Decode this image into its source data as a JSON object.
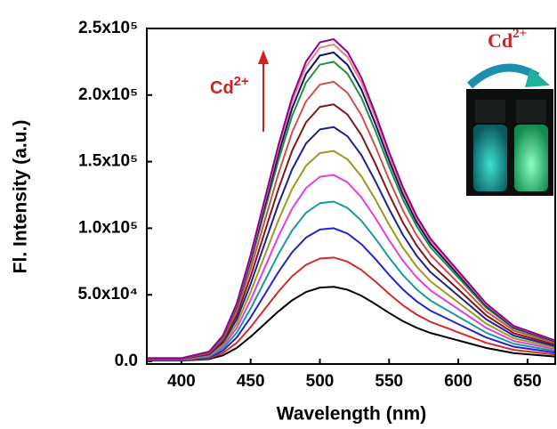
{
  "chart_data": {
    "type": "line",
    "x_label": "Wavelength (nm)",
    "y_label": "Fl. Intensity (a.u.)",
    "x": [
      375,
      400,
      420,
      430,
      440,
      450,
      460,
      470,
      480,
      490,
      500,
      510,
      520,
      530,
      540,
      550,
      560,
      570,
      580,
      600,
      620,
      640,
      670
    ],
    "xlim": [
      375,
      670
    ],
    "xticks": [
      400,
      450,
      500,
      550,
      600,
      650
    ],
    "ylim": [
      -2000,
      250000
    ],
    "yticks": [
      {
        "value": 0,
        "label": "0.0"
      },
      {
        "value": 50000,
        "label": "5.0x10⁴"
      },
      {
        "value": 100000,
        "label": "1.0x10⁵"
      },
      {
        "value": 150000,
        "label": "1.5x10⁵"
      },
      {
        "value": 200000,
        "label": "2.0x10⁵"
      },
      {
        "value": 250000,
        "label": "2.5x10⁵"
      }
    ],
    "grid": false,
    "annotations": [
      {
        "text": "Cd",
        "sup": "2+"
      },
      {
        "text": "Cd",
        "sup": "2+"
      }
    ],
    "series": [
      {
        "color": "#000000",
        "values": [
          600,
          600,
          1700,
          4500,
          10100,
          18500,
          28000,
          37500,
          45900,
          52100,
          55400,
          56000,
          53800,
          49300,
          43100,
          36400,
          30200,
          25200,
          21300,
          15700,
          10100,
          6200,
          3600
        ]
      },
      {
        "color": "#d42a2a",
        "values": [
          800,
          800,
          2300,
          6200,
          14000,
          25700,
          39000,
          52300,
          64000,
          72500,
          77200,
          78000,
          74900,
          68600,
          60100,
          50700,
          42100,
          35100,
          29600,
          21800,
          14000,
          8600,
          5100
        ]
      },
      {
        "color": "#2323c8",
        "values": [
          1000,
          1000,
          3000,
          8000,
          18000,
          33000,
          50000,
          67000,
          82000,
          93000,
          99000,
          100000,
          96000,
          88000,
          77000,
          65000,
          54000,
          45000,
          38000,
          28000,
          18000,
          11000,
          6500
        ]
      },
      {
        "color": "#1a9a9a",
        "values": [
          1200,
          1200,
          3600,
          9600,
          21600,
          39600,
          60000,
          80400,
          98400,
          111600,
          118800,
          120000,
          115200,
          105600,
          92400,
          78000,
          64800,
          54000,
          45600,
          33600,
          21600,
          13200,
          7800
        ]
      },
      {
        "color": "#e040e0",
        "values": [
          1400,
          1400,
          4200,
          11200,
          25200,
          46200,
          70000,
          93800,
          114800,
          130200,
          138600,
          140000,
          134400,
          123200,
          107800,
          91000,
          75600,
          63000,
          53200,
          39200,
          25200,
          15400,
          9100
        ]
      },
      {
        "color": "#9a9a20",
        "values": [
          1600,
          1600,
          4700,
          12600,
          28400,
          52100,
          79000,
          105900,
          129600,
          146900,
          156400,
          158000,
          151700,
          139000,
          121700,
          102700,
          85300,
          71100,
          60000,
          44200,
          28400,
          17400,
          10300
        ]
      },
      {
        "color": "#202090",
        "values": [
          1800,
          1800,
          5300,
          14100,
          31700,
          58100,
          88000,
          117900,
          144300,
          163700,
          174200,
          176000,
          169000,
          154900,
          135500,
          114400,
          95000,
          79200,
          66900,
          49300,
          31700,
          19400,
          11400
        ]
      },
      {
        "color": "#801818",
        "values": [
          1900,
          1900,
          5800,
          15400,
          34700,
          63700,
          96500,
          129300,
          158300,
          179500,
          191100,
          193000,
          185300,
          169800,
          148600,
          125500,
          104200,
          86900,
          73300,
          54000,
          34700,
          21200,
          12500
        ]
      },
      {
        "color": "#d05050",
        "values": [
          2100,
          2100,
          6300,
          16800,
          37800,
          69300,
          105000,
          140700,
          172200,
          195300,
          207900,
          210000,
          201600,
          184800,
          161700,
          136500,
          113400,
          94500,
          79800,
          58800,
          37800,
          23100,
          13700
        ]
      },
      {
        "color": "#209040",
        "values": [
          2300,
          2300,
          6800,
          18000,
          40500,
          74300,
          112500,
          150800,
          184500,
          209300,
          222800,
          225000,
          216000,
          198000,
          173300,
          146300,
          121500,
          101300,
          85500,
          63000,
          40500,
          24800,
          14600
        ]
      },
      {
        "color": "#10106a",
        "values": [
          2300,
          2300,
          7000,
          18600,
          41800,
          76600,
          116000,
          155400,
          190200,
          215800,
          229700,
          232000,
          222700,
          204200,
          178600,
          150800,
          125300,
          104400,
          88200,
          65000,
          41800,
          25500,
          15100
        ]
      },
      {
        "color": "#f08080",
        "values": [
          2400,
          2400,
          7100,
          19000,
          42800,
          78500,
          119000,
          159500,
          195200,
          221300,
          235600,
          238000,
          228500,
          209400,
          183300,
          154700,
          128500,
          107100,
          90400,
          66600,
          42800,
          26200,
          15500
        ]
      },
      {
        "color": "#900090",
        "values": [
          2400,
          2400,
          7300,
          19400,
          43600,
          79900,
          121000,
          162100,
          198400,
          225100,
          239600,
          242000,
          232300,
          213000,
          186300,
          157300,
          130700,
          108900,
          92000,
          67800,
          43600,
          26600,
          15700
        ]
      }
    ]
  }
}
